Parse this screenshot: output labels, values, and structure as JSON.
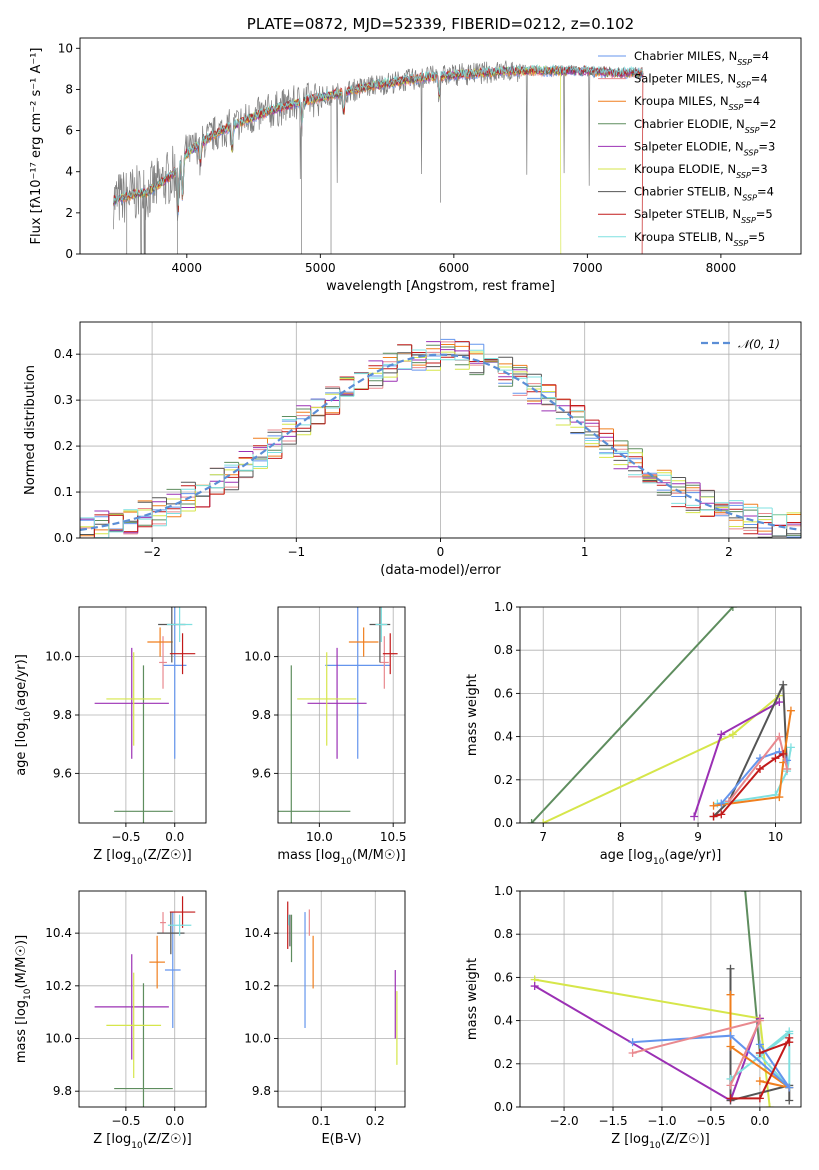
{
  "colors": {
    "Chabrier MILES": "#6495ed",
    "Salpeter MILES": "#e9898f",
    "Kroupa MILES": "#f07f1e",
    "Chabrier ELODIE": "#5e8d5e",
    "Salpeter ELODIE": "#9b30b4",
    "Kroupa ELODIE": "#d6e64a",
    "Chabrier STELIB": "#555555",
    "Salpeter STELIB": "#c21a1a",
    "Kroupa STELIB": "#7fe0e0",
    "data": "#7f7f7f",
    "gauss": "#5b8ed6"
  },
  "chart_data": [
    {
      "id": "spectrum",
      "type": "line",
      "title": "PLATE=0872, MJD=52339, FIBERID=0212, z=0.102",
      "xlabel": "wavelength [Angstrom, rest frame]",
      "ylabel": "Flux [fλ10⁻¹⁷ erg cm⁻² s⁻¹ A⁻¹]",
      "xlim": [
        3200,
        8600
      ],
      "ylim": [
        0,
        10.5
      ],
      "xticks": [
        4000,
        5000,
        6000,
        7000,
        8000
      ],
      "yticks": [
        0,
        2,
        4,
        6,
        8,
        10
      ],
      "legend": "top-right",
      "series": [
        {
          "name": "Chabrier MILES, N_SSP=4"
        },
        {
          "name": "Salpeter MILES, N_SSP=4"
        },
        {
          "name": "Kroupa MILES, N_SSP=4"
        },
        {
          "name": "Chabrier ELODIE, N_SSP=2"
        },
        {
          "name": "Salpeter ELODIE, N_SSP=3"
        },
        {
          "name": "Kroupa ELODIE, N_SSP=3"
        },
        {
          "name": "Chabrier STELIB, N_SSP=4"
        },
        {
          "name": "Salpeter STELIB, N_SSP=5"
        },
        {
          "name": "Kroupa STELIB, N_SSP=5"
        }
      ],
      "continuum": {
        "x": [
          3450,
          3600,
          3700,
          3800,
          3900,
          4000,
          4200,
          4400,
          4600,
          4800,
          5000,
          5200,
          5400,
          5600,
          5800,
          6000,
          6200,
          6400,
          6600,
          6800,
          7000,
          7200,
          7400
        ],
        "y": [
          2.6,
          2.9,
          3.0,
          3.4,
          3.9,
          4.9,
          5.8,
          6.4,
          6.9,
          7.3,
          7.6,
          7.9,
          8.2,
          8.4,
          8.6,
          8.7,
          8.8,
          8.9,
          8.9,
          8.9,
          8.9,
          8.8,
          8.8
        ]
      }
    },
    {
      "id": "residuals",
      "type": "bar",
      "xlabel": "(data-model)/error",
      "ylabel": "Normed distribution",
      "xlim": [
        -2.5,
        2.5
      ],
      "ylim": [
        0,
        0.47
      ],
      "xticks": [
        -2,
        -1,
        0,
        1,
        2
      ],
      "yticks": [
        0.0,
        0.1,
        0.2,
        0.3,
        0.4
      ],
      "legend": "top-right",
      "gauss_label": "𝒩(0, 1)",
      "bin_width": 0.1
    },
    {
      "id": "age-vs-Z",
      "type": "scatter",
      "xlabel": "Z [log10(Z/Z☉)]",
      "ylabel": "age  [log10(age/yr)]",
      "xlim": [
        -0.98,
        0.32
      ],
      "ylim": [
        9.43,
        10.17
      ],
      "xticks": [
        -0.5,
        0.0
      ],
      "yticks": [
        9.6,
        9.8,
        10.0
      ],
      "points": [
        {
          "model": "Chabrier MILES",
          "x": 0.0,
          "y": 9.97,
          "xerr": 0.12,
          "yerr": 0.32
        },
        {
          "model": "Salpeter MILES",
          "x": -0.12,
          "y": 9.98,
          "xerr": 0.04,
          "yerr": 0.09
        },
        {
          "model": "Kroupa MILES",
          "x": -0.15,
          "y": 10.05,
          "xerr": 0.13,
          "yerr": 0.05
        },
        {
          "model": "Chabrier ELODIE",
          "x": -0.32,
          "y": 9.47,
          "xerr": 0.3,
          "yerr": 0.5
        },
        {
          "model": "Salpeter ELODIE",
          "x": -0.44,
          "y": 9.84,
          "xerr": 0.38,
          "yerr": 0.19
        },
        {
          "model": "Kroupa ELODIE",
          "x": -0.42,
          "y": 9.855,
          "xerr": 0.28,
          "yerr": 0.16
        },
        {
          "model": "Chabrier STELIB",
          "x": -0.03,
          "y": 10.11,
          "xerr": 0.14,
          "yerr": 0.13
        },
        {
          "model": "Salpeter STELIB",
          "x": 0.08,
          "y": 10.01,
          "xerr": 0.13,
          "yerr": 0.07
        },
        {
          "model": "Kroupa STELIB",
          "x": 0.05,
          "y": 10.11,
          "xerr": 0.13,
          "yerr": 0.06
        }
      ]
    },
    {
      "id": "age-vs-mass",
      "type": "scatter",
      "xlabel": "mass [log10(M/M☉)]",
      "ylabel": "",
      "xlim": [
        9.72,
        10.58
      ],
      "ylim": [
        9.43,
        10.17
      ],
      "xticks": [
        10.0,
        10.5
      ],
      "yticks": [
        9.6,
        9.8,
        10.0
      ],
      "points": [
        {
          "model": "Chabrier MILES",
          "x": 10.26,
          "y": 9.97,
          "xerr": 0.22,
          "yerr": 0.32
        },
        {
          "model": "Salpeter MILES",
          "x": 10.44,
          "y": 9.98,
          "xerr": 0.03,
          "yerr": 0.09
        },
        {
          "model": "Kroupa MILES",
          "x": 10.3,
          "y": 10.05,
          "xerr": 0.1,
          "yerr": 0.05
        },
        {
          "model": "Chabrier ELODIE",
          "x": 9.81,
          "y": 9.47,
          "xerr": 0.4,
          "yerr": 0.5
        },
        {
          "model": "Salpeter ELODIE",
          "x": 10.12,
          "y": 9.84,
          "xerr": 0.2,
          "yerr": 0.19
        },
        {
          "model": "Kroupa ELODIE",
          "x": 10.05,
          "y": 9.855,
          "xerr": 0.2,
          "yerr": 0.16
        },
        {
          "model": "Chabrier STELIB",
          "x": 10.41,
          "y": 10.11,
          "xerr": 0.07,
          "yerr": 0.13
        },
        {
          "model": "Salpeter STELIB",
          "x": 10.48,
          "y": 10.01,
          "xerr": 0.05,
          "yerr": 0.07
        },
        {
          "model": "Kroupa STELIB",
          "x": 10.42,
          "y": 10.11,
          "xerr": 0.04,
          "yerr": 0.06
        }
      ]
    },
    {
      "id": "weight-vs-age",
      "type": "line",
      "xlabel": "age  [log10(age/yr)]",
      "ylabel": "mass weight",
      "xlim": [
        6.7,
        10.33
      ],
      "ylim": [
        0,
        1.0
      ],
      "xticks": [
        7,
        8,
        9,
        10
      ],
      "yticks": [
        0.0,
        0.2,
        0.4,
        0.6,
        0.8,
        1.0
      ],
      "series": [
        {
          "model": "Chabrier ELODIE",
          "x": [
            6.85,
            9.45
          ],
          "y": [
            0.0,
            1.0
          ]
        },
        {
          "model": "Kroupa ELODIE",
          "x": [
            7.0,
            9.45,
            10.05
          ],
          "y": [
            0.0,
            0.41,
            0.59
          ]
        },
        {
          "model": "Salpeter ELODIE",
          "x": [
            8.95,
            9.3,
            10.05
          ],
          "y": [
            0.03,
            0.41,
            0.56
          ]
        },
        {
          "model": "Chabrier STELIB",
          "x": [
            9.2,
            9.4,
            10.1,
            10.15
          ],
          "y": [
            0.03,
            0.1,
            0.64,
            0.25
          ]
        },
        {
          "model": "Kroupa STELIB",
          "x": [
            9.25,
            10.0,
            10.15,
            10.2
          ],
          "y": [
            0.09,
            0.13,
            0.24,
            0.35
          ]
        },
        {
          "model": "Kroupa MILES",
          "x": [
            9.2,
            10.05,
            10.1,
            10.2
          ],
          "y": [
            0.08,
            0.12,
            0.28,
            0.52
          ]
        },
        {
          "model": "Chabrier MILES",
          "x": [
            9.3,
            9.8,
            10.05,
            10.15
          ],
          "y": [
            0.09,
            0.3,
            0.33,
            0.29
          ]
        },
        {
          "model": "Salpeter MILES",
          "x": [
            9.4,
            10.05,
            10.15
          ],
          "y": [
            0.1,
            0.4,
            0.25
          ]
        },
        {
          "model": "Salpeter STELIB",
          "x": [
            9.2,
            9.3,
            9.8,
            10.0,
            10.1
          ],
          "y": [
            0.03,
            0.04,
            0.25,
            0.3,
            0.32
          ]
        }
      ]
    },
    {
      "id": "mass-vs-Z",
      "type": "scatter",
      "xlabel": "Z [log10(Z/Z☉)]",
      "ylabel": "mass [log10(M/M☉)]",
      "xlim": [
        -0.98,
        0.32
      ],
      "ylim": [
        9.74,
        10.56
      ],
      "xticks": [
        -0.5,
        0.0
      ],
      "yticks": [
        9.8,
        10.0,
        10.2,
        10.4
      ],
      "points": [
        {
          "model": "Chabrier MILES",
          "x": -0.02,
          "y": 10.26,
          "xerr": 0.08,
          "yerr": 0.22
        },
        {
          "model": "Salpeter MILES",
          "x": -0.12,
          "y": 10.44,
          "xerr": 0.03,
          "yerr": 0.04
        },
        {
          "model": "Kroupa MILES",
          "x": -0.18,
          "y": 10.29,
          "xerr": 0.08,
          "yerr": 0.1
        },
        {
          "model": "Chabrier ELODIE",
          "x": -0.32,
          "y": 9.81,
          "xerr": 0.3,
          "yerr": 0.4
        },
        {
          "model": "Salpeter ELODIE",
          "x": -0.44,
          "y": 10.12,
          "xerr": 0.38,
          "yerr": 0.2
        },
        {
          "model": "Kroupa ELODIE",
          "x": -0.42,
          "y": 10.05,
          "xerr": 0.28,
          "yerr": 0.2
        },
        {
          "model": "Chabrier STELIB",
          "x": -0.04,
          "y": 10.4,
          "xerr": 0.14,
          "yerr": 0.08
        },
        {
          "model": "Salpeter STELIB",
          "x": 0.08,
          "y": 10.48,
          "xerr": 0.13,
          "yerr": 0.06
        },
        {
          "model": "Kroupa STELIB",
          "x": 0.05,
          "y": 10.43,
          "xerr": 0.12,
          "yerr": 0.04
        }
      ]
    },
    {
      "id": "mass-vs-EBV",
      "type": "scatter",
      "xlabel": "E(B-V)",
      "ylabel": "",
      "xlim": [
        0.02,
        0.255
      ],
      "ylim": [
        9.74,
        10.56
      ],
      "xticks": [
        0.0,
        0.1,
        0.2
      ],
      "yticks": [
        9.8,
        10.0,
        10.2,
        10.4,
        10.6
      ],
      "points": [
        {
          "model": "Chabrier MILES",
          "x": 0.07,
          "y": 10.26,
          "yerr": 0.22
        },
        {
          "model": "Salpeter MILES",
          "x": 0.078,
          "y": 10.44,
          "yerr": 0.05
        },
        {
          "model": "Kroupa MILES",
          "x": 0.085,
          "y": 10.29,
          "yerr": 0.1
        },
        {
          "model": "Chabrier ELODIE",
          "x": 0.045,
          "y": 10.38,
          "yerr": 0.09
        },
        {
          "model": "Salpeter ELODIE",
          "x": 0.237,
          "y": 10.13,
          "yerr": 0.13
        },
        {
          "model": "Kroupa ELODIE",
          "x": 0.24,
          "y": 10.04,
          "yerr": 0.14
        },
        {
          "model": "Chabrier STELIB",
          "x": 0.042,
          "y": 10.41,
          "yerr": 0.06
        },
        {
          "model": "Salpeter STELIB",
          "x": 0.038,
          "y": 10.43,
          "yerr": 0.09
        },
        {
          "model": "Kroupa STELIB",
          "x": 0.04,
          "y": 10.45,
          "yerr": 0.02
        }
      ]
    },
    {
      "id": "weight-vs-Z",
      "type": "line",
      "xlabel": "Z [log10(Z/Z☉)]",
      "ylabel": "mass weight",
      "xlim": [
        -2.45,
        0.42
      ],
      "ylim": [
        0,
        1.0
      ],
      "xticks": [
        -2.0,
        -1.5,
        -1.0,
        -0.5,
        0.0
      ],
      "yticks": [
        0.0,
        0.2,
        0.4,
        0.6,
        0.8,
        1.0
      ],
      "series": [
        {
          "model": "Chabrier ELODIE",
          "x": [
            -0.15,
            0.0
          ],
          "y": [
            1.0,
            0.25
          ]
        },
        {
          "model": "Kroupa ELODIE",
          "x": [
            -2.3,
            0.0,
            0.1
          ],
          "y": [
            0.59,
            0.41,
            0.0
          ]
        },
        {
          "model": "Salpeter ELODIE",
          "x": [
            -2.3,
            -0.3,
            0.0
          ],
          "y": [
            0.56,
            0.03,
            0.41
          ]
        },
        {
          "model": "Chabrier STELIB",
          "x": [
            -0.3,
            -0.3,
            0.3,
            0.3
          ],
          "y": [
            0.64,
            0.03,
            0.1,
            0.03
          ]
        },
        {
          "model": "Kroupa STELIB",
          "x": [
            -0.3,
            0.3,
            0.3,
            0.0,
            0.3
          ],
          "y": [
            0.13,
            0.34,
            0.09,
            0.24,
            0.35
          ]
        },
        {
          "model": "Kroupa MILES",
          "x": [
            -0.3,
            -0.3,
            0.3,
            0.0
          ],
          "y": [
            0.52,
            0.28,
            0.09,
            0.12
          ]
        },
        {
          "model": "Chabrier MILES",
          "x": [
            -1.3,
            -0.3,
            0.3,
            0.0
          ],
          "y": [
            0.3,
            0.33,
            0.09,
            0.29
          ]
        },
        {
          "model": "Salpeter MILES",
          "x": [
            -1.3,
            0.0,
            -0.3
          ],
          "y": [
            0.25,
            0.4,
            0.1
          ]
        },
        {
          "model": "Salpeter STELIB",
          "x": [
            -0.3,
            0.0,
            0.3,
            0.3,
            0.0
          ],
          "y": [
            0.04,
            0.04,
            0.32,
            0.3,
            0.25
          ]
        }
      ]
    }
  ]
}
